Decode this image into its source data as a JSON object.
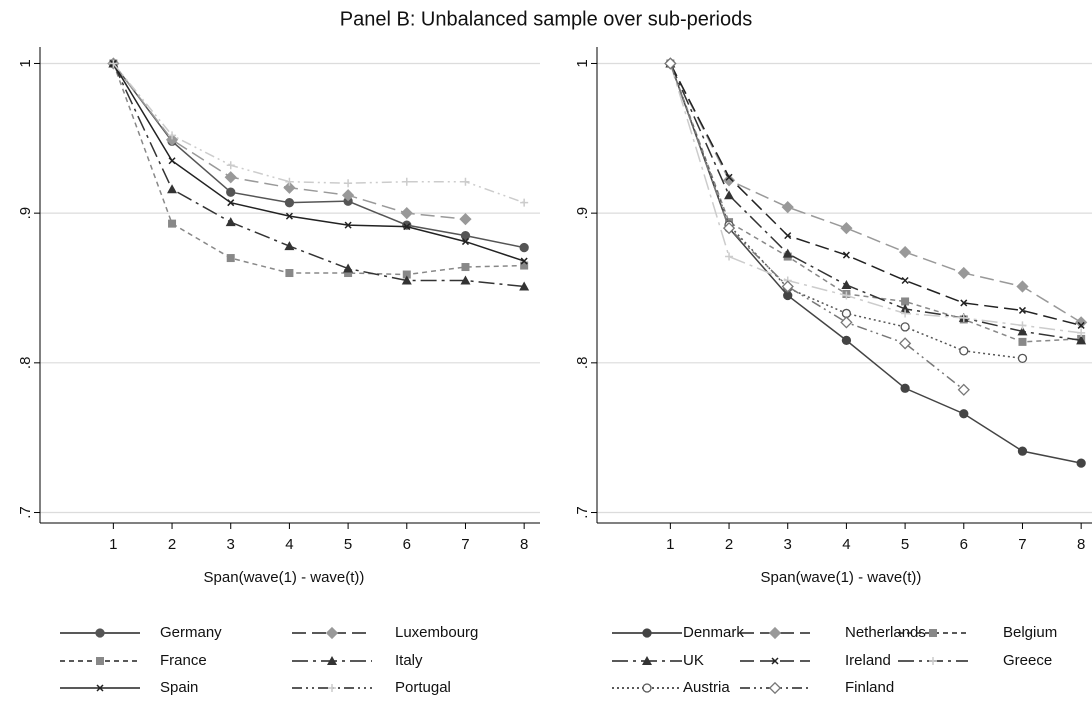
{
  "title": "Panel B: Unbalanced sample over sub-periods",
  "chart_data": [
    {
      "type": "line",
      "x_label": "Span(wave(1) - wave(t))",
      "x": [
        1,
        2,
        3,
        4,
        5,
        6,
        7,
        8
      ],
      "xlim": [
        -0.25,
        8.27
      ],
      "xticks": [
        1,
        2,
        3,
        4,
        5,
        6,
        7,
        8
      ],
      "ylim": [
        0.693,
        1.011
      ],
      "yticks": [
        1,
        {
          "value": 0.9,
          "label": ".9"
        },
        {
          "value": 0.8,
          "label": ".8"
        },
        {
          "value": 0.7,
          "label": ".7"
        }
      ],
      "grid": true,
      "legend": "bottom",
      "series": [
        {
          "name": "Germany",
          "color": "#555555",
          "marker": "circle",
          "dash": "none",
          "values": [
            1,
            0.948,
            0.914,
            0.907,
            0.908,
            0.892,
            0.885,
            0.877
          ]
        },
        {
          "name": "Luxembourg",
          "color": "#999999",
          "marker": "diamond",
          "dash": "14,6",
          "values": [
            1,
            0.949,
            0.924,
            0.917,
            0.912,
            0.9,
            0.896,
            null
          ]
        },
        {
          "name": "France",
          "color": "#888888",
          "marker": "square",
          "dash": "5,4",
          "values": [
            1,
            0.893,
            0.87,
            0.86,
            0.86,
            0.859,
            0.864,
            0.865
          ]
        },
        {
          "name": "Italy",
          "color": "#333333",
          "marker": "triangle",
          "dash": "16,5,3,5",
          "values": [
            1,
            0.916,
            0.894,
            0.878,
            0.863,
            0.855,
            0.855,
            0.851
          ]
        },
        {
          "name": "Spain",
          "color": "#222222",
          "marker": "x",
          "dash": "none",
          "values": [
            1,
            0.935,
            0.907,
            0.898,
            0.892,
            0.891,
            0.881,
            0.868
          ]
        },
        {
          "name": "Portugal",
          "color": "#cccccc",
          "marker": "plus",
          "dash": "10,4,2,4,2,4",
          "values": [
            1,
            0.952,
            0.932,
            0.921,
            0.92,
            0.921,
            0.921,
            0.907
          ]
        }
      ]
    },
    {
      "type": "line",
      "x_label": "Span(wave(1) - wave(t))",
      "x": [
        1,
        2,
        3,
        4,
        5,
        6,
        7,
        8
      ],
      "xlim": [
        -0.25,
        8.27
      ],
      "xticks": [
        1,
        2,
        3,
        4,
        5,
        6,
        7,
        8
      ],
      "ylim": [
        0.693,
        1.011
      ],
      "yticks": [
        1,
        {
          "value": 0.9,
          "label": ".9"
        },
        {
          "value": 0.8,
          "label": ".8"
        },
        {
          "value": 0.7,
          "label": ".7"
        }
      ],
      "grid": true,
      "legend": "bottom",
      "series": [
        {
          "name": "Denmark",
          "color": "#444444",
          "marker": "circle",
          "dash": "none",
          "values": [
            1,
            0.89,
            0.845,
            0.815,
            0.783,
            0.766,
            0.741,
            0.733
          ]
        },
        {
          "name": "Netherlands",
          "color": "#999999",
          "marker": "diamond",
          "dash": "14,6",
          "values": [
            1,
            0.922,
            0.904,
            0.89,
            0.874,
            0.86,
            0.851,
            0.827
          ]
        },
        {
          "name": "Belgium",
          "color": "#888888",
          "marker": "square",
          "dash": "5,4",
          "values": [
            1,
            0.894,
            0.871,
            0.846,
            0.841,
            0.829,
            0.814,
            0.816
          ]
        },
        {
          "name": "UK",
          "color": "#333333",
          "marker": "triangle",
          "dash": "16,5,3,5",
          "values": [
            1,
            0.912,
            0.873,
            0.852,
            0.836,
            0.83,
            0.821,
            0.815
          ]
        },
        {
          "name": "Ireland",
          "color": "#222222",
          "marker": "x",
          "dash": "14,6",
          "values": [
            1,
            0.924,
            0.885,
            0.872,
            0.855,
            0.84,
            0.835,
            0.825
          ]
        },
        {
          "name": "Greece",
          "color": "#cccccc",
          "marker": "plus",
          "dash": "16,5,3,5",
          "values": [
            1,
            0.871,
            0.855,
            0.845,
            0.833,
            0.83,
            0.825,
            0.82
          ]
        },
        {
          "name": "Austria",
          "color": "#555555",
          "marker": "ocircle",
          "dash": "2,3",
          "values": [
            1,
            0.892,
            0.85,
            0.833,
            0.824,
            0.808,
            0.803,
            null
          ]
        },
        {
          "name": "Finland",
          "color": "#777777",
          "marker": "odiamond",
          "dash": "10,4,2,4,2,4",
          "values": [
            1,
            0.89,
            0.851,
            0.827,
            0.813,
            0.782,
            null,
            null
          ]
        }
      ]
    }
  ]
}
